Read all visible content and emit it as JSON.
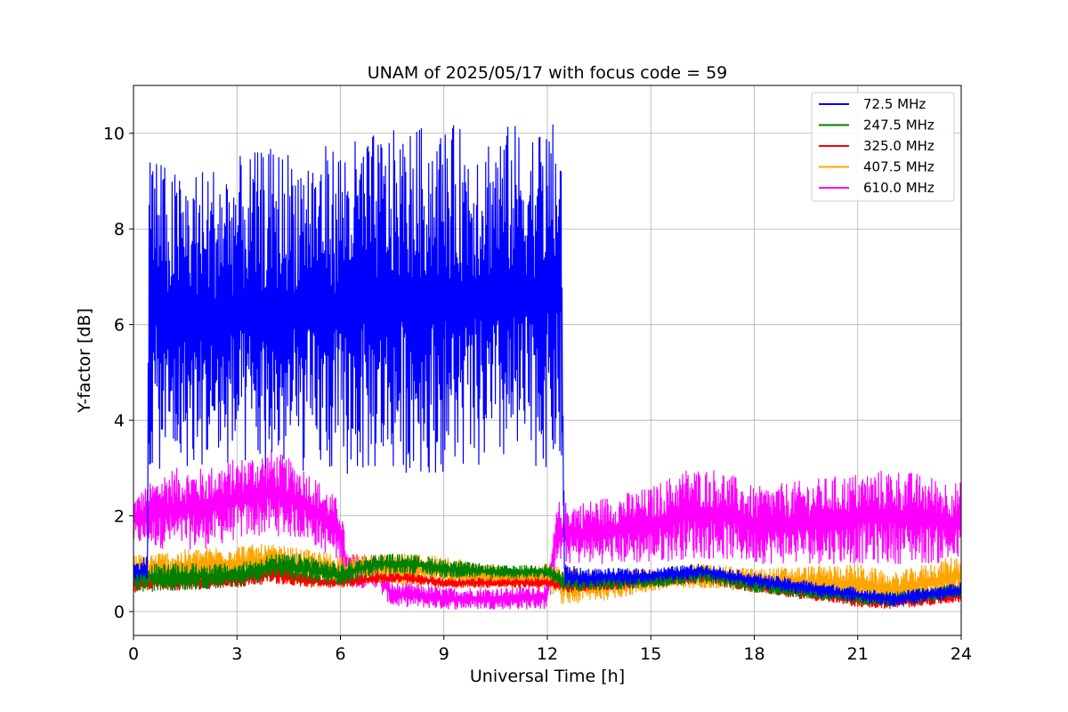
{
  "chart_data": {
    "type": "line",
    "title": "UNAM of 2025/05/17 with focus code = 59",
    "xlabel": "Universal Time [h]",
    "ylabel": "Y-factor [dB]",
    "xlim": [
      0,
      24
    ],
    "ylim": [
      -0.5,
      11
    ],
    "xticks": [
      0,
      3,
      6,
      9,
      12,
      15,
      18,
      21,
      24
    ],
    "yticks": [
      0,
      2,
      4,
      6,
      8,
      10
    ],
    "grid": true,
    "legend_position": "top-right",
    "series": [
      {
        "name": " 72.5 MHz",
        "color": "#0000ff",
        "envelope": {
          "x": [
            0,
            0.4,
            0.45,
            1,
            2,
            3,
            4,
            5,
            6,
            7,
            8,
            9,
            10,
            11,
            12,
            12.4,
            12.5,
            13,
            15,
            16.5,
            18,
            21,
            22,
            24
          ],
          "upper": [
            1.0,
            1.2,
            10.0,
            9.2,
            9.3,
            9.5,
            9.7,
            9.7,
            9.8,
            10.0,
            10.1,
            10.2,
            10.1,
            10.2,
            10.2,
            10.3,
            1.0,
            0.9,
            0.9,
            1.0,
            0.8,
            0.5,
            0.4,
            0.6
          ],
          "lower": [
            0.6,
            0.6,
            2.9,
            3.0,
            3.0,
            3.0,
            2.9,
            2.9,
            2.8,
            2.9,
            2.9,
            2.9,
            2.9,
            3.0,
            3.0,
            3.1,
            0.5,
            0.5,
            0.6,
            0.7,
            0.5,
            0.2,
            0.1,
            0.3
          ]
        }
      },
      {
        "name": "247.5 MHz",
        "color": "#008000",
        "envelope": {
          "x": [
            0,
            3,
            4,
            5,
            6,
            7,
            8,
            9,
            10,
            11,
            12,
            12.5,
            15,
            16.5,
            18,
            21,
            22,
            24
          ],
          "upper": [
            1.0,
            1.0,
            1.2,
            1.2,
            1.0,
            1.2,
            1.2,
            1.1,
            1.0,
            0.95,
            1.0,
            0.8,
            0.8,
            0.95,
            0.7,
            0.4,
            0.4,
            0.6
          ],
          "lower": [
            0.4,
            0.5,
            0.7,
            0.6,
            0.5,
            0.8,
            0.8,
            0.7,
            0.7,
            0.7,
            0.7,
            0.4,
            0.5,
            0.6,
            0.4,
            0.15,
            0.1,
            0.3
          ]
        }
      },
      {
        "name": "325.0 MHz",
        "color": "#ff0000",
        "envelope": {
          "x": [
            0,
            3,
            4,
            5,
            6,
            7,
            8,
            9,
            10,
            11,
            12,
            12.5,
            15,
            16.5,
            18,
            21,
            22,
            24
          ],
          "upper": [
            0.8,
            0.8,
            1.0,
            0.8,
            0.7,
            0.8,
            0.8,
            0.7,
            0.7,
            0.7,
            0.7,
            0.7,
            0.75,
            0.95,
            0.7,
            0.35,
            0.35,
            0.45
          ],
          "lower": [
            0.4,
            0.5,
            0.6,
            0.5,
            0.5,
            0.6,
            0.6,
            0.5,
            0.5,
            0.5,
            0.5,
            0.4,
            0.5,
            0.6,
            0.4,
            0.1,
            0.05,
            0.2
          ]
        }
      },
      {
        "name": "407.5 MHz",
        "color": "#ffa500",
        "envelope": {
          "x": [
            0,
            3,
            4,
            5,
            6,
            7,
            8,
            9,
            10,
            11,
            12,
            12.5,
            15,
            16.5,
            18,
            21,
            22,
            24
          ],
          "upper": [
            1.2,
            1.4,
            1.4,
            1.3,
            1.2,
            1.2,
            1.2,
            1.2,
            1.0,
            0.9,
            1.0,
            0.9,
            0.9,
            1.0,
            0.9,
            1.0,
            0.8,
            1.2
          ],
          "lower": [
            0.4,
            0.6,
            0.7,
            0.5,
            0.5,
            0.6,
            0.5,
            0.5,
            0.5,
            0.5,
            0.5,
            0.1,
            0.4,
            0.5,
            0.4,
            0.15,
            0.1,
            0.3
          ]
        }
      },
      {
        "name": "610.0 MHz",
        "color": "#ff00ff",
        "envelope": {
          "x": [
            0,
            1,
            2,
            3,
            4,
            5,
            6,
            6.2,
            7,
            7.5,
            8,
            9,
            10,
            11,
            12,
            12.3,
            13,
            15,
            16,
            17,
            18,
            21,
            22,
            24
          ],
          "upper": [
            2.4,
            3.0,
            3.0,
            3.2,
            3.4,
            3.0,
            2.3,
            1.2,
            1.2,
            0.6,
            0.6,
            0.5,
            0.5,
            0.5,
            0.6,
            2.3,
            2.3,
            2.6,
            3.0,
            3.0,
            2.6,
            2.9,
            3.0,
            2.7
          ],
          "lower": [
            1.4,
            1.3,
            1.3,
            1.5,
            1.6,
            1.5,
            1.0,
            0.5,
            0.5,
            0.1,
            0.1,
            0.05,
            0.05,
            0.05,
            0.05,
            1.0,
            1.0,
            1.0,
            1.1,
            1.1,
            1.0,
            1.0,
            1.0,
            1.0
          ]
        }
      }
    ]
  }
}
